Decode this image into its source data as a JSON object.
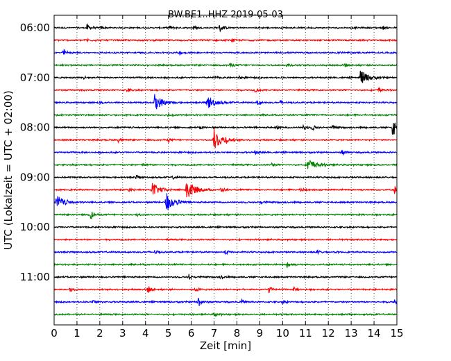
{
  "chart_data": {
    "type": "line",
    "title": "BW.BE1..HHZ 2019-05-03",
    "xlabel": "Zeit  [min]",
    "ylabel": "UTC (Lokalzeit = UTC + 02:00)",
    "xlim": [
      0,
      15
    ],
    "x_ticks": [
      0,
      1,
      2,
      3,
      4,
      5,
      6,
      7,
      8,
      9,
      10,
      11,
      12,
      13,
      14,
      15
    ],
    "x_tick_labels": [
      "0",
      "1",
      "2",
      "3",
      "4",
      "5",
      "6",
      "7",
      "8",
      "9",
      "10",
      "11",
      "12",
      "13",
      "14",
      "15"
    ],
    "y_tick_labels": [
      "06:00",
      "07:00",
      "08:00",
      "09:00",
      "10:00",
      "11:00"
    ],
    "y_tick_rows": [
      0,
      4,
      8,
      12,
      16,
      20
    ],
    "grid": "vertical dotted",
    "colors": [
      "#000000",
      "#ff0000",
      "#0000ff",
      "#008000"
    ],
    "series": [
      {
        "row": 0,
        "start": "06:00",
        "color": "#000000",
        "noise": 0.1,
        "events": [
          {
            "t": 1.43,
            "amp": 0.6
          },
          {
            "t": 2.05,
            "amp": 0.25
          },
          {
            "t": 5.05,
            "amp": 0.3
          },
          {
            "t": 6.1,
            "amp": 0.3
          },
          {
            "t": 7.25,
            "amp": 0.75
          },
          {
            "t": 14.4,
            "amp": 0.25
          }
        ]
      },
      {
        "row": 1,
        "start": "06:15",
        "color": "#ff0000",
        "noise": 0.1,
        "events": [
          {
            "t": 1.4,
            "amp": 0.25
          },
          {
            "t": 7.8,
            "amp": 0.25
          }
        ]
      },
      {
        "row": 2,
        "start": "06:30",
        "color": "#0000ff",
        "noise": 0.1,
        "events": [
          {
            "t": 0.4,
            "amp": 0.55
          },
          {
            "t": 5.5,
            "amp": 0.3
          },
          {
            "t": 12.4,
            "amp": 0.25
          }
        ]
      },
      {
        "row": 3,
        "start": "06:45",
        "color": "#008000",
        "noise": 0.1,
        "events": [
          {
            "t": 7.7,
            "amp": 0.3
          },
          {
            "t": 10.2,
            "amp": 0.4
          },
          {
            "t": 12.7,
            "amp": 0.3
          }
        ]
      },
      {
        "row": 4,
        "start": "07:00",
        "color": "#000000",
        "noise": 0.1,
        "events": [
          {
            "t": 1.3,
            "amp": 0.25
          },
          {
            "t": 7.0,
            "amp": 0.25
          },
          {
            "t": 8.1,
            "amp": 0.25
          },
          {
            "t": 13.4,
            "amp": 1.3
          }
        ]
      },
      {
        "row": 5,
        "start": "07:15",
        "color": "#ff0000",
        "noise": 0.1,
        "events": [
          {
            "t": 3.2,
            "amp": 0.4
          },
          {
            "t": 8.8,
            "amp": 0.35
          },
          {
            "t": 14.2,
            "amp": 0.4
          }
        ]
      },
      {
        "row": 6,
        "start": "07:30",
        "color": "#0000ff",
        "noise": 0.1,
        "events": [
          {
            "t": 2.0,
            "amp": 0.25
          },
          {
            "t": 4.4,
            "amp": 1.4
          },
          {
            "t": 6.7,
            "amp": 1.1
          },
          {
            "t": 8.9,
            "amp": 0.35
          },
          {
            "t": 9.9,
            "amp": 0.25
          }
        ]
      },
      {
        "row": 7,
        "start": "07:45",
        "color": "#008000",
        "noise": 0.1,
        "events": [
          {
            "t": 5.0,
            "amp": 0.3
          }
        ]
      },
      {
        "row": 8,
        "start": "08:00",
        "color": "#000000",
        "noise": 0.1,
        "events": [
          {
            "t": 6.4,
            "amp": 0.3
          },
          {
            "t": 9.7,
            "amp": 0.3
          },
          {
            "t": 10.9,
            "amp": 0.4
          },
          {
            "t": 11.3,
            "amp": 0.5
          },
          {
            "t": 12.2,
            "amp": 0.3
          },
          {
            "t": 14.8,
            "amp": 1.3
          }
        ]
      },
      {
        "row": 9,
        "start": "08:15",
        "color": "#ff0000",
        "noise": 0.1,
        "events": [
          {
            "t": 2.8,
            "amp": 0.35
          },
          {
            "t": 5.0,
            "amp": 0.3
          },
          {
            "t": 7.0,
            "amp": 1.8
          },
          {
            "t": 7.5,
            "amp": 0.35
          }
        ]
      },
      {
        "row": 10,
        "start": "08:30",
        "color": "#0000ff",
        "noise": 0.1,
        "events": [
          {
            "t": 8.8,
            "amp": 0.35
          },
          {
            "t": 12.6,
            "amp": 0.45
          }
        ]
      },
      {
        "row": 11,
        "start": "08:45",
        "color": "#008000",
        "noise": 0.1,
        "events": [
          {
            "t": 3.9,
            "amp": 0.25
          },
          {
            "t": 9.5,
            "amp": 0.3
          },
          {
            "t": 11.1,
            "amp": 1.1
          }
        ]
      },
      {
        "row": 12,
        "start": "09:00",
        "color": "#000000",
        "noise": 0.1,
        "events": [
          {
            "t": 3.6,
            "amp": 0.35
          },
          {
            "t": 5.2,
            "amp": 0.25
          }
        ]
      },
      {
        "row": 13,
        "start": "09:15",
        "color": "#ff0000",
        "noise": 0.1,
        "events": [
          {
            "t": 3.3,
            "amp": 0.4
          },
          {
            "t": 4.3,
            "amp": 1.1
          },
          {
            "t": 5.8,
            "amp": 1.9
          },
          {
            "t": 7.3,
            "amp": 0.45
          },
          {
            "t": 10.8,
            "amp": 0.45
          },
          {
            "t": 14.9,
            "amp": 0.6
          }
        ]
      },
      {
        "row": 14,
        "start": "09:30",
        "color": "#0000ff",
        "noise": 0.1,
        "events": [
          {
            "t": 0.1,
            "amp": 1.2
          },
          {
            "t": 4.9,
            "amp": 1.8
          },
          {
            "t": 9.0,
            "amp": 0.3
          }
        ]
      },
      {
        "row": 15,
        "start": "09:45",
        "color": "#008000",
        "noise": 0.1,
        "events": [
          {
            "t": 1.6,
            "amp": 0.8
          },
          {
            "t": 3.6,
            "amp": 0.25
          }
        ]
      },
      {
        "row": 16,
        "start": "10:00",
        "color": "#000000",
        "noise": 0.1,
        "events": []
      },
      {
        "row": 17,
        "start": "10:15",
        "color": "#ff0000",
        "noise": 0.1,
        "events": []
      },
      {
        "row": 18,
        "start": "10:30",
        "color": "#0000ff",
        "noise": 0.1,
        "events": [
          {
            "t": 4.4,
            "amp": 0.25
          },
          {
            "t": 7.5,
            "amp": 0.35
          },
          {
            "t": 11.5,
            "amp": 0.35
          }
        ]
      },
      {
        "row": 19,
        "start": "10:45",
        "color": "#008000",
        "noise": 0.1,
        "events": [
          {
            "t": 10.2,
            "amp": 0.55
          }
        ]
      },
      {
        "row": 20,
        "start": "11:00",
        "color": "#000000",
        "noise": 0.1,
        "events": [
          {
            "t": 5.9,
            "amp": 0.4
          },
          {
            "t": 7.3,
            "amp": 0.3
          }
        ]
      },
      {
        "row": 21,
        "start": "11:15",
        "color": "#ff0000",
        "noise": 0.1,
        "events": [
          {
            "t": 0.7,
            "amp": 0.5
          },
          {
            "t": 4.1,
            "amp": 0.65
          },
          {
            "t": 6.2,
            "amp": 0.4
          },
          {
            "t": 9.4,
            "amp": 0.5
          },
          {
            "t": 10.5,
            "amp": 0.35
          }
        ]
      },
      {
        "row": 22,
        "start": "11:30",
        "color": "#0000ff",
        "noise": 0.1,
        "events": [
          {
            "t": 1.7,
            "amp": 0.35
          },
          {
            "t": 6.3,
            "amp": 1.0
          },
          {
            "t": 8.2,
            "amp": 0.35
          },
          {
            "t": 10.0,
            "amp": 0.3
          },
          {
            "t": 14.9,
            "amp": 0.45
          }
        ]
      },
      {
        "row": 23,
        "start": "11:45",
        "color": "#008000",
        "noise": 0.1,
        "events": [
          {
            "t": 7.0,
            "amp": 0.35
          }
        ]
      }
    ]
  }
}
